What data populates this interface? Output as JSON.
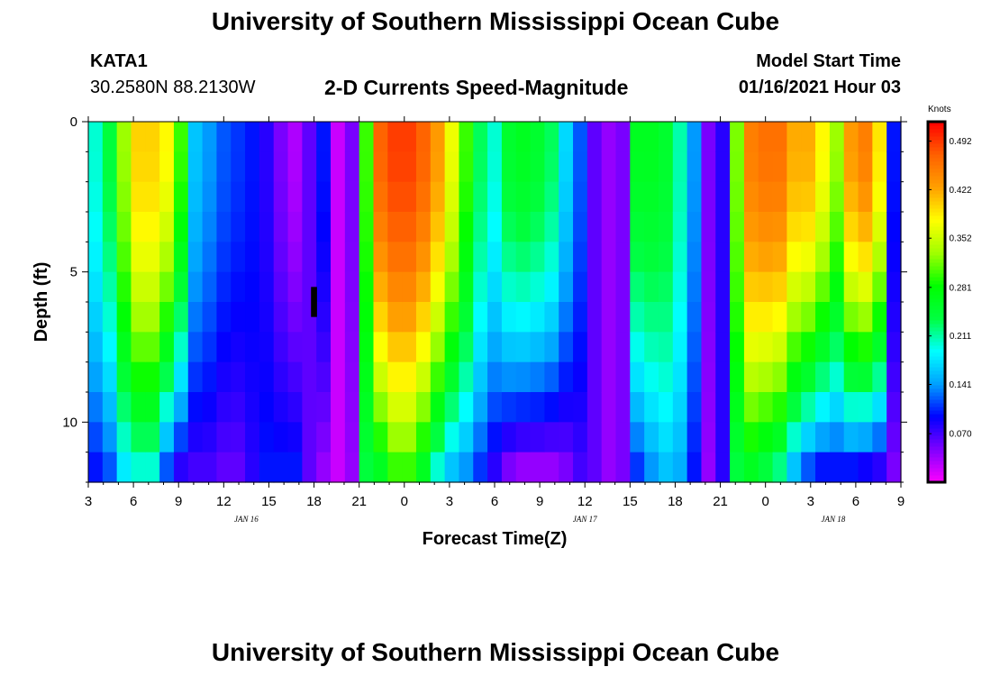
{
  "page": {
    "title_top": "University of Southern Mississippi Ocean Cube",
    "title_bottom": "University of Southern Mississippi Ocean Cube",
    "station_id": "KATA1",
    "station_coords": "30.2580N 88.2130W",
    "plot_title": "2-D Currents Speed-Magnitude",
    "model_start_label": "Model Start Time",
    "model_start_time": "01/16/2021 Hour 03"
  },
  "colors": {
    "scale": [
      "#ff00ff",
      "#8000ff",
      "#0000ff",
      "#00a0ff",
      "#00ffff",
      "#00ff40",
      "#00ff00",
      "#a0ff00",
      "#ffff00",
      "#ffa000",
      "#ff6000",
      "#ff0000"
    ],
    "missing": "#000000"
  },
  "chart_data": {
    "type": "heatmap",
    "title": "2-D Currents Speed-Magnitude",
    "xlabel": "Forecast Time(Z)",
    "ylabel": "Depth (ft)",
    "xlim": [
      0,
      54
    ],
    "ylim": [
      12,
      0
    ],
    "x_ticks": [
      {
        "x": 0,
        "label": "3"
      },
      {
        "x": 3,
        "label": "6"
      },
      {
        "x": 6,
        "label": "9"
      },
      {
        "x": 9,
        "label": "12"
      },
      {
        "x": 12,
        "label": "15"
      },
      {
        "x": 15,
        "label": "18"
      },
      {
        "x": 18,
        "label": "21"
      },
      {
        "x": 21,
        "label": "0"
      },
      {
        "x": 24,
        "label": "3"
      },
      {
        "x": 27,
        "label": "6"
      },
      {
        "x": 30,
        "label": "9"
      },
      {
        "x": 33,
        "label": "12"
      },
      {
        "x": 36,
        "label": "15"
      },
      {
        "x": 39,
        "label": "18"
      },
      {
        "x": 42,
        "label": "21"
      },
      {
        "x": 45,
        "label": "0"
      },
      {
        "x": 48,
        "label": "3"
      },
      {
        "x": 51,
        "label": "6"
      },
      {
        "x": 54,
        "label": "9"
      }
    ],
    "date_labels": [
      {
        "x": 10.5,
        "label": "JAN 16"
      },
      {
        "x": 33,
        "label": "JAN 17"
      },
      {
        "x": 49.5,
        "label": "JAN 18"
      }
    ],
    "y_ticks": [
      {
        "y": 0,
        "label": "0"
      },
      {
        "y": 5,
        "label": "5"
      },
      {
        "y": 10,
        "label": "10"
      }
    ],
    "colorbar": {
      "unit": "Knots",
      "min": 0.0,
      "max": 0.52,
      "tick_labels": [
        "0.492",
        "0.422",
        "0.352",
        "0.281",
        "0.211",
        "0.141",
        "0.070"
      ],
      "tick_values": [
        0.492,
        0.422,
        0.352,
        0.281,
        0.211,
        0.141,
        0.07
      ]
    },
    "profiles": {
      "surface": [
        0.2,
        0.24,
        0.33,
        0.4,
        0.4,
        0.38,
        0.3,
        0.16,
        0.14,
        0.12,
        0.11,
        0.1,
        0.08,
        0.05,
        0.03,
        0.06,
        0.1,
        0.02,
        0.05,
        0.3,
        0.47,
        0.49,
        0.49,
        0.47,
        0.43,
        0.37,
        0.3,
        0.23,
        0.2,
        0.25,
        0.26,
        0.25,
        0.23,
        0.17,
        0.12,
        0.06,
        0.04,
        0.05,
        0.26,
        0.26,
        0.25,
        0.21,
        0.14,
        0.05,
        0.08,
        0.32,
        0.45,
        0.46,
        0.46,
        0.42,
        0.42,
        0.38,
        0.33,
        0.43,
        0.45,
        0.39,
        0.1
      ],
      "bottom": [
        0.1,
        0.12,
        0.18,
        0.2,
        0.2,
        0.12,
        0.08,
        0.07,
        0.07,
        0.06,
        0.06,
        0.08,
        0.1,
        0.1,
        0.1,
        0.06,
        0.04,
        0.02,
        0.04,
        0.24,
        0.26,
        0.3,
        0.3,
        0.26,
        0.2,
        0.16,
        0.14,
        0.11,
        0.08,
        0.05,
        0.04,
        0.04,
        0.04,
        0.05,
        0.07,
        0.06,
        0.04,
        0.05,
        0.11,
        0.14,
        0.16,
        0.15,
        0.1,
        0.04,
        0.08,
        0.24,
        0.26,
        0.24,
        0.22,
        0.16,
        0.12,
        0.1,
        0.1,
        0.1,
        0.09,
        0.08,
        0.05
      ]
    },
    "missing_block": {
      "x": [
        14.8,
        15.2
      ],
      "y": [
        5.5,
        6.5
      ]
    }
  }
}
